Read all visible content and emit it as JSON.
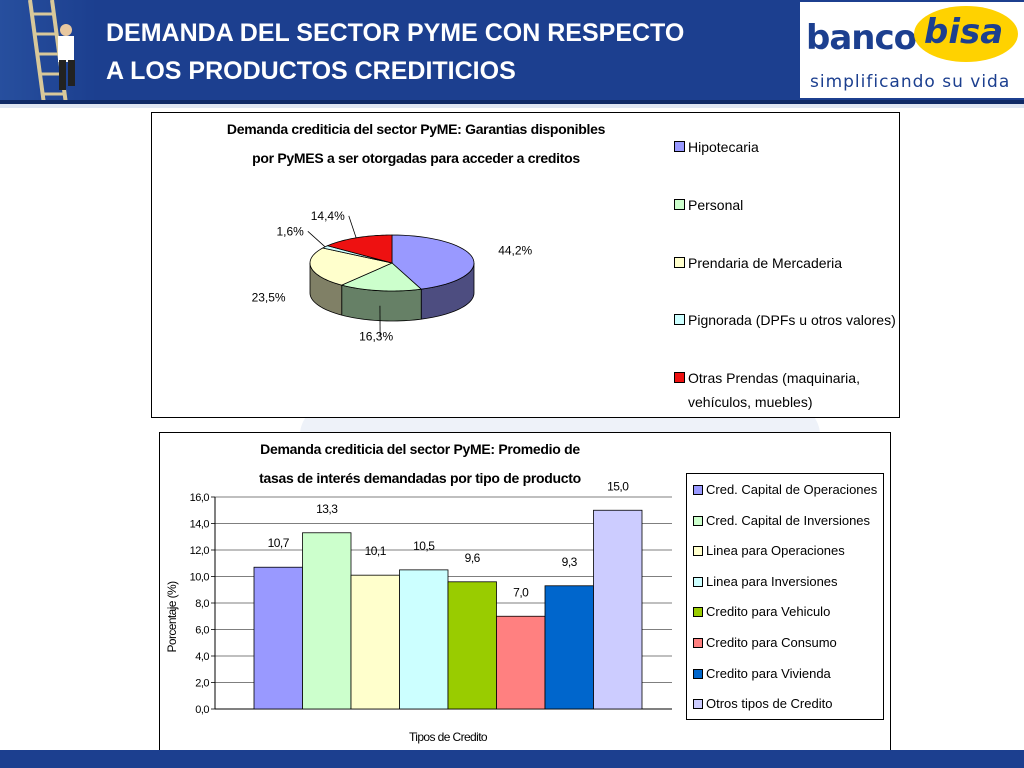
{
  "header": {
    "title_line1": "DEMANDA DEL SECTOR PYME CON RESPECTO",
    "title_line2": "A LOS PRODUCTOS CREDITICIOS",
    "logo_banco": "banco",
    "logo_bisa": "bisa",
    "logo_slogan": "simplificando su vida",
    "brand_color": "#1c3f8f",
    "logo_accent": "#ffd200"
  },
  "chart_data": [
    {
      "type": "pie",
      "title_line1": "Demanda crediticia del sector PyME: Garantias disponibles",
      "title_line2": "por PyMES a ser otorgadas para acceder a creditos",
      "slices": [
        {
          "label": "Hipotecaria",
          "value": 44.2,
          "value_label": "44,2%",
          "color": "#9999ff"
        },
        {
          "label": "Personal",
          "value": 16.3,
          "value_label": "16,3%",
          "color": "#ccffcc"
        },
        {
          "label": "Prendaria de Mercaderia",
          "value": 23.5,
          "value_label": "23,5%",
          "color": "#ffffcc"
        },
        {
          "label": "Pignorada (DPFs u otros valores)",
          "value": 1.6,
          "value_label": "1,6%",
          "color": "#ccffff"
        },
        {
          "label": "Otras Prendas (maquinaria, vehículos, muebles)",
          "value": 14.4,
          "value_label": "14,4%",
          "color": "#ee1111"
        }
      ],
      "legend_items": [
        {
          "line1": "Hipotecaria",
          "line2": ""
        },
        {
          "line1": "Personal",
          "line2": ""
        },
        {
          "line1": "Prendaria de Mercaderia",
          "line2": ""
        },
        {
          "line1": "Pignorada (DPFs u otros valores)",
          "line2": ""
        },
        {
          "line1": "Otras Prendas (maquinaria,",
          "line2": "vehículos, muebles)"
        }
      ],
      "legend_position": "right"
    },
    {
      "type": "bar",
      "title_line1": "Demanda crediticia del sector PyME: Promedio de",
      "title_line2": "tasas de interés demandadas por tipo de producto",
      "xlabel": "Tipos de Credito",
      "ylabel": "Porcentaje (%)",
      "ylim": [
        0,
        16
      ],
      "yticks": [
        "0,0",
        "2,0",
        "4,0",
        "6,0",
        "8,0",
        "10,0",
        "12,0",
        "14,0",
        "16,0"
      ],
      "grid": true,
      "legend_position": "right",
      "series": [
        {
          "name": "Cred. Capital de Operaciones",
          "value": 10.7,
          "value_label": "10,7",
          "color": "#9999ff"
        },
        {
          "name": "Cred. Capital de Inversiones",
          "value": 13.3,
          "value_label": "13,3",
          "color": "#ccffcc"
        },
        {
          "name": "Linea para Operaciones",
          "value": 10.1,
          "value_label": "10,1",
          "color": "#ffffcc"
        },
        {
          "name": "Linea para Inversiones",
          "value": 10.5,
          "value_label": "10,5",
          "color": "#ccffff"
        },
        {
          "name": "Credito para Vehiculo",
          "value": 9.6,
          "value_label": "9,6",
          "color": "#99cc00"
        },
        {
          "name": "Credito para Consumo",
          "value": 7.0,
          "value_label": "7,0",
          "color": "#ff8080"
        },
        {
          "name": "Credito para Vivienda",
          "value": 9.3,
          "value_label": "9,3",
          "color": "#0066cc"
        },
        {
          "name": "Otros tipos de Credito",
          "value": 15.0,
          "value_label": "15,0",
          "color": "#ccccff"
        }
      ]
    }
  ]
}
